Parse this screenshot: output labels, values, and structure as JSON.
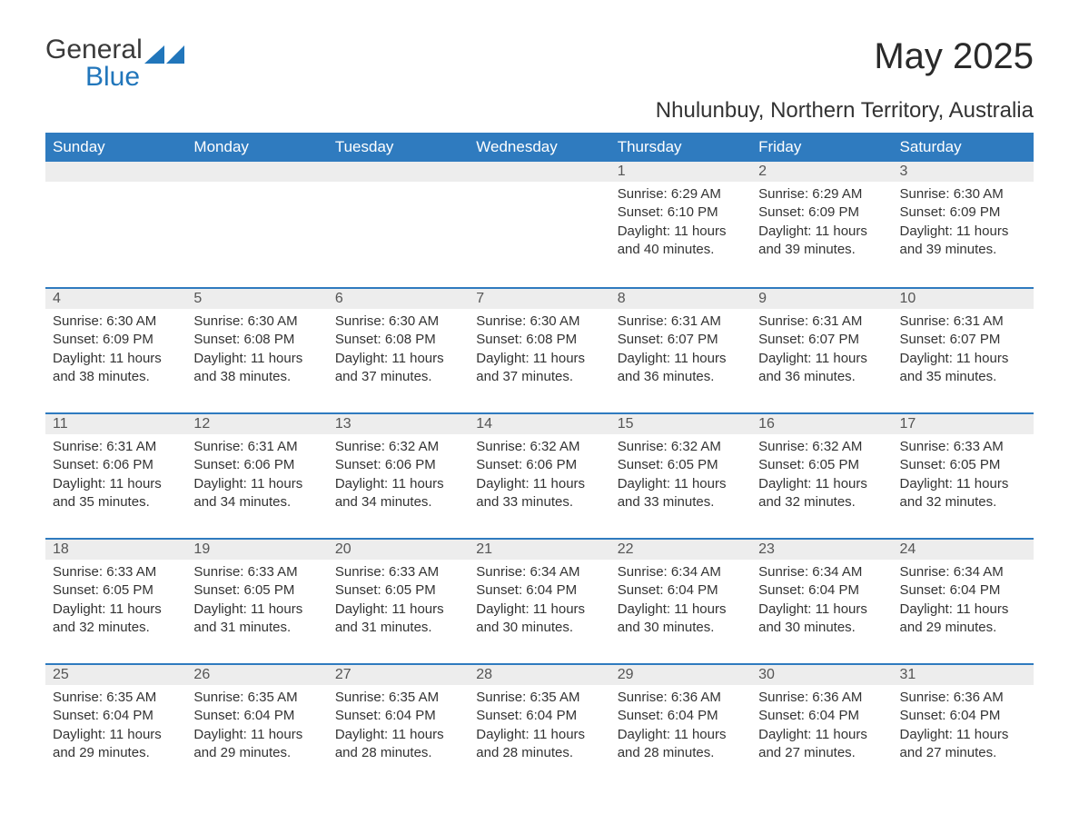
{
  "brand": {
    "word1": "General",
    "word2": "Blue",
    "logo_color": "#2176bb"
  },
  "title": "May 2025",
  "location": "Nhulunbuy, Northern Territory, Australia",
  "colors": {
    "header_bg": "#2f7bbf",
    "header_text": "#ffffff",
    "daynum_bg": "#ededed",
    "daynum_border": "#2f7bbf",
    "body_text": "#333333"
  },
  "weekdays": [
    "Sunday",
    "Monday",
    "Tuesday",
    "Wednesday",
    "Thursday",
    "Friday",
    "Saturday"
  ],
  "weeks": [
    [
      null,
      null,
      null,
      null,
      {
        "n": "1",
        "sunrise": "6:29 AM",
        "sunset": "6:10 PM",
        "daylight": "11 hours and 40 minutes."
      },
      {
        "n": "2",
        "sunrise": "6:29 AM",
        "sunset": "6:09 PM",
        "daylight": "11 hours and 39 minutes."
      },
      {
        "n": "3",
        "sunrise": "6:30 AM",
        "sunset": "6:09 PM",
        "daylight": "11 hours and 39 minutes."
      }
    ],
    [
      {
        "n": "4",
        "sunrise": "6:30 AM",
        "sunset": "6:09 PM",
        "daylight": "11 hours and 38 minutes."
      },
      {
        "n": "5",
        "sunrise": "6:30 AM",
        "sunset": "6:08 PM",
        "daylight": "11 hours and 38 minutes."
      },
      {
        "n": "6",
        "sunrise": "6:30 AM",
        "sunset": "6:08 PM",
        "daylight": "11 hours and 37 minutes."
      },
      {
        "n": "7",
        "sunrise": "6:30 AM",
        "sunset": "6:08 PM",
        "daylight": "11 hours and 37 minutes."
      },
      {
        "n": "8",
        "sunrise": "6:31 AM",
        "sunset": "6:07 PM",
        "daylight": "11 hours and 36 minutes."
      },
      {
        "n": "9",
        "sunrise": "6:31 AM",
        "sunset": "6:07 PM",
        "daylight": "11 hours and 36 minutes."
      },
      {
        "n": "10",
        "sunrise": "6:31 AM",
        "sunset": "6:07 PM",
        "daylight": "11 hours and 35 minutes."
      }
    ],
    [
      {
        "n": "11",
        "sunrise": "6:31 AM",
        "sunset": "6:06 PM",
        "daylight": "11 hours and 35 minutes."
      },
      {
        "n": "12",
        "sunrise": "6:31 AM",
        "sunset": "6:06 PM",
        "daylight": "11 hours and 34 minutes."
      },
      {
        "n": "13",
        "sunrise": "6:32 AM",
        "sunset": "6:06 PM",
        "daylight": "11 hours and 34 minutes."
      },
      {
        "n": "14",
        "sunrise": "6:32 AM",
        "sunset": "6:06 PM",
        "daylight": "11 hours and 33 minutes."
      },
      {
        "n": "15",
        "sunrise": "6:32 AM",
        "sunset": "6:05 PM",
        "daylight": "11 hours and 33 minutes."
      },
      {
        "n": "16",
        "sunrise": "6:32 AM",
        "sunset": "6:05 PM",
        "daylight": "11 hours and 32 minutes."
      },
      {
        "n": "17",
        "sunrise": "6:33 AM",
        "sunset": "6:05 PM",
        "daylight": "11 hours and 32 minutes."
      }
    ],
    [
      {
        "n": "18",
        "sunrise": "6:33 AM",
        "sunset": "6:05 PM",
        "daylight": "11 hours and 32 minutes."
      },
      {
        "n": "19",
        "sunrise": "6:33 AM",
        "sunset": "6:05 PM",
        "daylight": "11 hours and 31 minutes."
      },
      {
        "n": "20",
        "sunrise": "6:33 AM",
        "sunset": "6:05 PM",
        "daylight": "11 hours and 31 minutes."
      },
      {
        "n": "21",
        "sunrise": "6:34 AM",
        "sunset": "6:04 PM",
        "daylight": "11 hours and 30 minutes."
      },
      {
        "n": "22",
        "sunrise": "6:34 AM",
        "sunset": "6:04 PM",
        "daylight": "11 hours and 30 minutes."
      },
      {
        "n": "23",
        "sunrise": "6:34 AM",
        "sunset": "6:04 PM",
        "daylight": "11 hours and 30 minutes."
      },
      {
        "n": "24",
        "sunrise": "6:34 AM",
        "sunset": "6:04 PM",
        "daylight": "11 hours and 29 minutes."
      }
    ],
    [
      {
        "n": "25",
        "sunrise": "6:35 AM",
        "sunset": "6:04 PM",
        "daylight": "11 hours and 29 minutes."
      },
      {
        "n": "26",
        "sunrise": "6:35 AM",
        "sunset": "6:04 PM",
        "daylight": "11 hours and 29 minutes."
      },
      {
        "n": "27",
        "sunrise": "6:35 AM",
        "sunset": "6:04 PM",
        "daylight": "11 hours and 28 minutes."
      },
      {
        "n": "28",
        "sunrise": "6:35 AM",
        "sunset": "6:04 PM",
        "daylight": "11 hours and 28 minutes."
      },
      {
        "n": "29",
        "sunrise": "6:36 AM",
        "sunset": "6:04 PM",
        "daylight": "11 hours and 28 minutes."
      },
      {
        "n": "30",
        "sunrise": "6:36 AM",
        "sunset": "6:04 PM",
        "daylight": "11 hours and 27 minutes."
      },
      {
        "n": "31",
        "sunrise": "6:36 AM",
        "sunset": "6:04 PM",
        "daylight": "11 hours and 27 minutes."
      }
    ]
  ],
  "labels": {
    "sunrise": "Sunrise:",
    "sunset": "Sunset:",
    "daylight": "Daylight:"
  }
}
